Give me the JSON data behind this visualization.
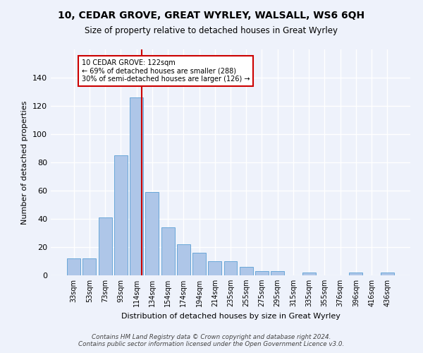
{
  "title": "10, CEDAR GROVE, GREAT WYRLEY, WALSALL, WS6 6QH",
  "subtitle": "Size of property relative to detached houses in Great Wyrley",
  "xlabel": "Distribution of detached houses by size in Great Wyrley",
  "ylabel": "Number of detached properties",
  "footer_line1": "Contains HM Land Registry data © Crown copyright and database right 2024.",
  "footer_line2": "Contains public sector information licensed under the Open Government Licence v3.0.",
  "categories": [
    "33sqm",
    "53sqm",
    "73sqm",
    "93sqm",
    "114sqm",
    "134sqm",
    "154sqm",
    "174sqm",
    "194sqm",
    "214sqm",
    "235sqm",
    "255sqm",
    "275sqm",
    "295sqm",
    "315sqm",
    "335sqm",
    "355sqm",
    "376sqm",
    "396sqm",
    "416sqm",
    "436sqm"
  ],
  "values": [
    12,
    12,
    41,
    85,
    126,
    59,
    34,
    22,
    16,
    10,
    10,
    6,
    3,
    3,
    0,
    2,
    0,
    0,
    2,
    0,
    2
  ],
  "bar_color": "#aec6e8",
  "bar_edge_color": "#5a9fd4",
  "background_color": "#eef2fb",
  "grid_color": "#ffffff",
  "property_label": "10 CEDAR GROVE: 122sqm",
  "annotation_line1": "← 69% of detached houses are smaller (288)",
  "annotation_line2": "30% of semi-detached houses are larger (126) →",
  "vline_color": "#cc0000",
  "annotation_box_color": "#cc0000",
  "ylim": [
    0,
    160
  ],
  "yticks": [
    0,
    20,
    40,
    60,
    80,
    100,
    120,
    140,
    160
  ]
}
